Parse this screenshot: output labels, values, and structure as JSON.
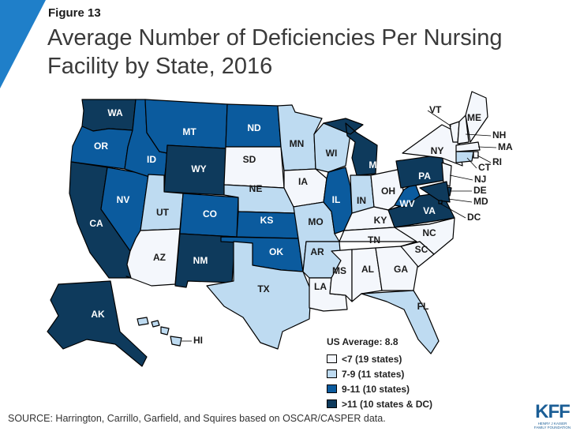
{
  "figure_label": "Figure 13",
  "title": "Average Number of Deficiencies Per Nursing Facility by State, 2016",
  "colors": {
    "low": "#f4f7fc",
    "mid_low": "#bedbf1",
    "mid_high": "#0b5b9e",
    "high": "#0e3a5c",
    "accent": "#1f7fc9"
  },
  "legend": {
    "title": "US Average: 8.8",
    "items": [
      {
        "label": "<7 (19 states)",
        "level": "low"
      },
      {
        "label": "7-9 (11 states)",
        "level": "mid_low"
      },
      {
        "label": "9-11 (10 states)",
        "level": "mid_high"
      },
      {
        "label": ">11 (10 states & DC)",
        "level": "high"
      }
    ]
  },
  "states": {
    "WA": "high",
    "OR": "mid_high",
    "CA": "high",
    "NV": "mid_high",
    "ID": "mid_high",
    "MT": "mid_high",
    "WY": "high",
    "UT": "mid_low",
    "AZ": "low",
    "CO": "mid_high",
    "NM": "high",
    "ND": "mid_high",
    "SD": "low",
    "NE": "mid_low",
    "KS": "mid_high",
    "OK": "mid_high",
    "TX": "mid_low",
    "MN": "mid_low",
    "IA": "low",
    "MO": "mid_low",
    "AR": "mid_low",
    "LA": "low",
    "WI": "mid_low",
    "IL": "mid_high",
    "MI": "high",
    "IN": "mid_low",
    "OH": "low",
    "KY": "low",
    "TN": "low",
    "MS": "low",
    "AL": "low",
    "GA": "low",
    "FL": "mid_low",
    "SC": "low",
    "NC": "low",
    "VA": "high",
    "WV": "mid_high",
    "PA": "high",
    "NY": "low",
    "VT": "low",
    "NH": "low",
    "ME": "low",
    "MA": "low",
    "RI": "low",
    "CT": "mid_low",
    "NJ": "low",
    "DE": "high",
    "MD": "high",
    "DC": "high",
    "AK": "high",
    "HI": "mid_low"
  },
  "source": "SOURCE: Harrington,  Carrillo, Garfield, and Squires based on OSCAR/CASPER data.",
  "logo": {
    "main": "KFF",
    "sub1": "HENRY J KAISER",
    "sub2": "FAMILY FOUNDATION"
  }
}
